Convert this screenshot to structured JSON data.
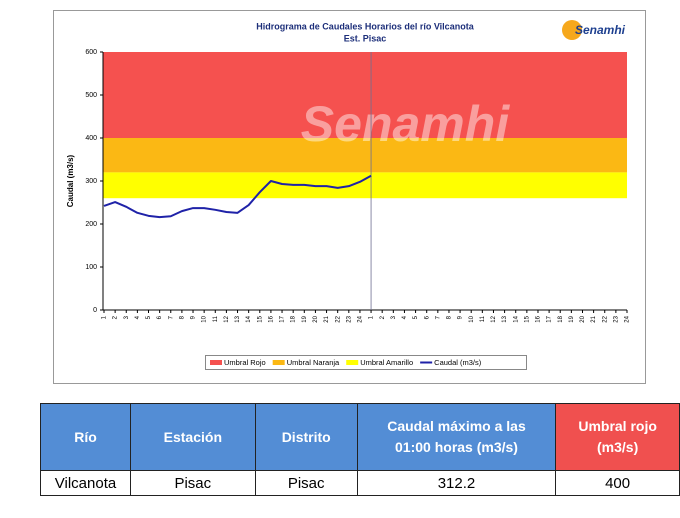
{
  "chart_data": {
    "type": "line",
    "title": "Hidrograma de Caudales Horarios del río Vilcanota",
    "subtitle": "Est. Pisac",
    "logo": "Senamhi",
    "watermark": "Senamhi",
    "y_label": "Caudal (m3/s)",
    "categories": [
      "1",
      "2",
      "3",
      "4",
      "5",
      "6",
      "7",
      "8",
      "9",
      "10",
      "11",
      "12",
      "13",
      "14",
      "15",
      "16",
      "17",
      "18",
      "19",
      "20",
      "21",
      "22",
      "23",
      "24",
      "1",
      "2",
      "3",
      "4",
      "5",
      "6",
      "7",
      "8",
      "9",
      "10",
      "11",
      "12",
      "13",
      "14",
      "15",
      "16",
      "17",
      "18",
      "19",
      "20",
      "21",
      "22",
      "23",
      "24"
    ],
    "ylim": [
      0,
      600
    ],
    "yticks": [
      0,
      100,
      200,
      300,
      400,
      500,
      600
    ],
    "thresholds": [
      {
        "name": "Umbral Rojo",
        "color": "#f5514f",
        "range": [
          400,
          600
        ]
      },
      {
        "name": "Umbral Naranja",
        "color": "#fbb814",
        "range": [
          320,
          400
        ]
      },
      {
        "name": "Umbral Amarillo",
        "color": "#ffff00",
        "range": [
          260,
          320
        ]
      }
    ],
    "series": [
      {
        "name": "Caudal (m3/s)",
        "color": "#1f22a8",
        "values": [
          242,
          251,
          240,
          226,
          219,
          216,
          218,
          230,
          237,
          237,
          233,
          228,
          226,
          244,
          274,
          300,
          293,
          291,
          291,
          288,
          288,
          284,
          288,
          298,
          312.2,
          null,
          null,
          null,
          null,
          null,
          null,
          null,
          null,
          null,
          null,
          null,
          null,
          null,
          null,
          null,
          null,
          null,
          null,
          null,
          null,
          null,
          null,
          null
        ]
      }
    ]
  },
  "table": {
    "headers": [
      "Río",
      "Estación",
      "Distrito",
      "Caudal máximo a las 01:00 horas (m3/s)",
      "Umbral rojo (m3/s)"
    ],
    "rows": [
      [
        "Vilcanota",
        "Pisac",
        "Pisac",
        "312.2",
        "400"
      ]
    ]
  }
}
